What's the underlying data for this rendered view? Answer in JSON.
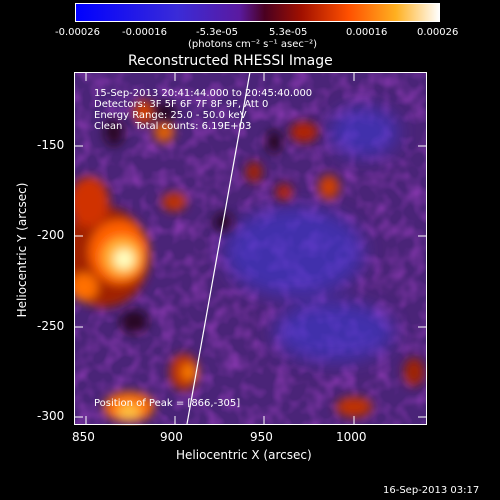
{
  "colorbar": {
    "ticks": [
      "-0.00026",
      "-0.00016",
      "-5.3e-05",
      "5.3e-05",
      "0.00016",
      "0.00026"
    ],
    "unit_label": "(photons cm⁻² s⁻¹ asec⁻²)"
  },
  "title": "Reconstructed RHESSI Image",
  "annotations": {
    "time_range": "15-Sep-2013 20:41:44.000 to 20:45:40.000",
    "detectors": "Detectors: 3F 5F 6F 7F 8F 9F, Att 0",
    "energy": "Energy Range: 25.0 - 50.0 keV",
    "method": "Clean",
    "counts": "Total counts: 6.19E+03",
    "peak": "Position of Peak = [866,-305]"
  },
  "axes": {
    "xlabel": "Heliocentric X (arcsec)",
    "ylabel": "Heliocentric Y (arcsec)",
    "xticks": [
      "850",
      "900",
      "950",
      "1000"
    ],
    "yticks": [
      "-150",
      "-200",
      "-250",
      "-300"
    ]
  },
  "footer": {
    "date": "16-Sep-2013 03:17"
  },
  "colors": {
    "background": "#000000",
    "limb": "#ffffff"
  }
}
